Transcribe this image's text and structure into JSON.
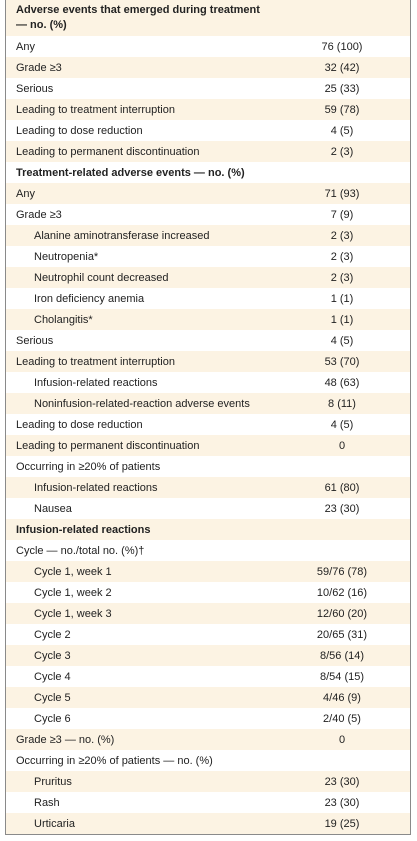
{
  "table": {
    "sections": [
      {
        "title": "Adverse events that emerged during treatment — no. (%)",
        "rows": [
          {
            "label": "Any",
            "value": "76 (100)"
          },
          {
            "label": "Grade ≥3",
            "value": "32 (42)"
          },
          {
            "label": "Serious",
            "value": "25 (33)"
          },
          {
            "label": "Leading to treatment interruption",
            "value": "59 (78)"
          },
          {
            "label": "Leading to dose reduction",
            "value": "4 (5)"
          },
          {
            "label": "Leading to permanent discontinuation",
            "value": "2 (3)"
          }
        ]
      },
      {
        "title": "Treatment-related adverse events — no. (%)",
        "rows": [
          {
            "label": "Any",
            "value": "71 (93)"
          },
          {
            "label": "Grade ≥3",
            "value": "7 (9)",
            "subrows": [
              {
                "label": "Alanine aminotransferase increased",
                "value": "2 (3)"
              },
              {
                "label": "Neutropenia*",
                "value": "2 (3)"
              },
              {
                "label": "Neutrophil count decreased",
                "value": "2 (3)"
              },
              {
                "label": "Iron deficiency anemia",
                "value": "1 (1)"
              },
              {
                "label": "Cholangitis*",
                "value": "1 (1)"
              }
            ]
          },
          {
            "label": "Serious",
            "value": "4 (5)"
          },
          {
            "label": "Leading to treatment interruption",
            "value": "53 (70)",
            "subrows": [
              {
                "label": "Infusion-related reactions",
                "value": "48 (63)"
              },
              {
                "label": "Noninfusion-related-reaction adverse events",
                "value": "8 (11)"
              }
            ]
          },
          {
            "label": "Leading to dose reduction",
            "value": "4 (5)"
          },
          {
            "label": "Leading to permanent discontinuation",
            "value": "0"
          },
          {
            "label": "Occurring in ≥20% of patients",
            "subrows": [
              {
                "label": "Infusion-related reactions",
                "value": "61 (80)"
              },
              {
                "label": "Nausea",
                "value": "23 (30)"
              }
            ]
          }
        ]
      },
      {
        "title": "Infusion-related reactions",
        "rows": [
          {
            "label": "Cycle — no./total no. (%)†",
            "subrows": [
              {
                "label": "Cycle 1, week 1",
                "value": "59/76 (78)"
              },
              {
                "label": "Cycle 1, week 2",
                "value": "10/62 (16)"
              },
              {
                "label": "Cycle 1, week 3",
                "value": "12/60 (20)"
              },
              {
                "label": "Cycle 2",
                "value": "20/65 (31)"
              },
              {
                "label": "Cycle 3",
                "value": "8/56 (14)"
              },
              {
                "label": "Cycle 4",
                "value": "8/54 (15)"
              },
              {
                "label": "Cycle 5",
                "value": "4/46 (9)"
              },
              {
                "label": "Cycle 6",
                "value": "2/40 (5)"
              }
            ]
          },
          {
            "label": "Grade ≥3 — no. (%)",
            "value": "0"
          },
          {
            "label": "Occurring in ≥20% of patients — no. (%)",
            "subrows": [
              {
                "label": "Pruritus",
                "value": "23 (30)"
              },
              {
                "label": "Rash",
                "value": "23 (30)"
              },
              {
                "label": "Urticaria",
                "value": "19 (25)"
              }
            ]
          }
        ]
      }
    ]
  }
}
